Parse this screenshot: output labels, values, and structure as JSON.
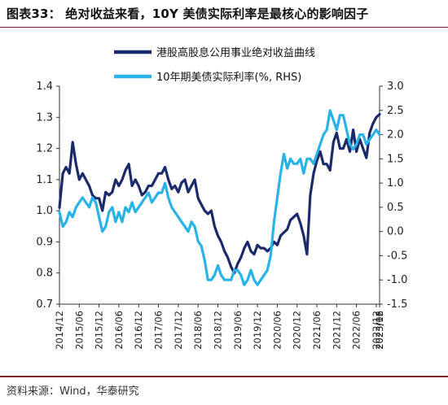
{
  "header": {
    "title": "图表33：  绝对收益来看，10Y 美债实际利率是最核心的影响因子"
  },
  "footer": {
    "source": "资料来源：Wind，华泰研究"
  },
  "colors": {
    "accent_rule": "#7a1f2b",
    "series_left": "#1b2a6b",
    "series_right": "#29b3e8"
  },
  "chart_data": {
    "type": "line",
    "title": "",
    "series": [
      {
        "name": "港股高股息公用事业绝对收益曲线",
        "axis": "left",
        "color": "#1b2a6b",
        "values": [
          1.01,
          1.12,
          1.14,
          1.12,
          1.22,
          1.15,
          1.1,
          1.12,
          1.1,
          1.08,
          1.05,
          1.04,
          1.04,
          1.0,
          1.06,
          1.05,
          1.06,
          1.1,
          1.08,
          1.1,
          1.13,
          1.15,
          1.08,
          1.1,
          1.08,
          1.05,
          1.06,
          1.08,
          1.08,
          1.1,
          1.12,
          1.12,
          1.14,
          1.1,
          1.07,
          1.08,
          1.06,
          1.09,
          1.1,
          1.06,
          1.08,
          1.1,
          1.04,
          1.02,
          1.0,
          0.99,
          1.0,
          0.95,
          0.92,
          0.9,
          0.87,
          0.85,
          0.82,
          0.8,
          0.83,
          0.85,
          0.88,
          0.9,
          0.87,
          0.86,
          0.89,
          0.88,
          0.88,
          0.87,
          0.88,
          0.9,
          0.89,
          0.92,
          0.93,
          0.94,
          0.97,
          0.98,
          0.99,
          0.96,
          0.92,
          0.86,
          1.05,
          1.12,
          1.16,
          1.19,
          1.15,
          1.15,
          1.13,
          1.22,
          1.25,
          1.2,
          1.2,
          1.23,
          1.19,
          1.26,
          1.19,
          1.23,
          1.2,
          1.17,
          1.25,
          1.28,
          1.3,
          1.31
        ]
      },
      {
        "name": "10年期美债实际利率(%, RHS)",
        "axis": "right",
        "color": "#29b3e8",
        "values": [
          0.4,
          0.1,
          0.2,
          0.4,
          0.3,
          0.5,
          0.6,
          0.7,
          0.6,
          0.5,
          0.7,
          0.6,
          0.3,
          0.0,
          0.1,
          0.4,
          0.5,
          0.2,
          0.4,
          0.2,
          0.5,
          0.4,
          0.6,
          0.4,
          0.5,
          0.6,
          0.7,
          0.8,
          0.6,
          0.7,
          0.8,
          0.8,
          1.0,
          0.7,
          0.5,
          0.4,
          0.3,
          0.2,
          0.1,
          0.0,
          0.2,
          0.1,
          -0.2,
          -0.3,
          -0.6,
          -1.0,
          -1.0,
          -0.9,
          -0.7,
          -0.9,
          -1.0,
          -1.0,
          -1.0,
          -0.8,
          -0.8,
          -0.9,
          -1.1,
          -1.0,
          -0.8,
          -1.0,
          -1.1,
          -1.0,
          -0.9,
          -0.8,
          -0.5,
          0.2,
          0.7,
          1.2,
          1.6,
          1.3,
          1.5,
          1.4,
          1.4,
          1.5,
          1.2,
          1.5,
          1.5,
          1.4,
          1.6,
          1.8,
          2.0,
          2.1,
          2.5,
          2.3,
          2.1,
          2.4,
          2.4,
          2.1,
          1.8,
          1.7,
          1.8,
          2.0,
          2.0,
          1.8,
          1.9,
          2.0,
          2.1,
          2.0
        ]
      }
    ],
    "x_start_label": "2014/12",
    "x_tick_labels": [
      "2014/12",
      "2015/06",
      "2015/12",
      "2016/06",
      "2016/12",
      "2017/06",
      "2017/12",
      "2018/06",
      "2018/12",
      "2019/06",
      "2019/12",
      "2020/06",
      "2020/12",
      "2021/06",
      "2021/12",
      "2022/06",
      "2022/12",
      "2023/06",
      "2023/12"
    ],
    "left_axis": {
      "ylim": [
        0.7,
        1.4
      ],
      "ticks": [
        "0.7",
        "0.8",
        "0.9",
        "1.0",
        "1.1",
        "1.2",
        "1.3",
        "1.4"
      ]
    },
    "right_axis": {
      "ylim": [
        -1.5,
        3.0
      ],
      "ticks": [
        "-1.5",
        "-1.0",
        "-0.5",
        "0.0",
        "0.5",
        "1.0",
        "1.5",
        "2.0",
        "2.5",
        "3.0"
      ]
    },
    "grid": false,
    "legend_position": "top-center"
  }
}
